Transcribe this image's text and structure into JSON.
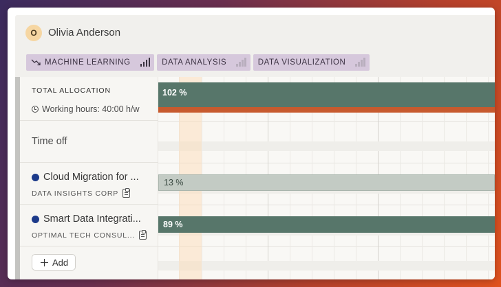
{
  "user": {
    "initial": "O",
    "name": "Olivia Anderson",
    "avatar_color": "#f6d6a2"
  },
  "skills": [
    {
      "label": "MACHINE LEARNING",
      "level": 4,
      "max_level": 4,
      "trend_icon": "trending-down-icon"
    },
    {
      "label": "DATA ANALYSIS",
      "level": 0,
      "max_level": 4
    },
    {
      "label": "DATA VISUALIZATION",
      "level": 0,
      "max_level": 4
    }
  ],
  "allocation": {
    "label": "TOTAL ALLOCATION",
    "working_hours": "Working hours: 40:00 h/w",
    "percent_label": "102 %",
    "percent": 102,
    "bar_color": "#57766a",
    "overallocation_color": "#c75a2e"
  },
  "time_off": {
    "label": "Time off"
  },
  "projects": [
    {
      "name": "Cloud Migration for ...",
      "client": "DATA INSIGHTS CORP",
      "percent_label": "13 %",
      "percent": 13,
      "dot_color": "#1c3a8a"
    },
    {
      "name": "Smart Data Integrati...",
      "client": "OPTIMAL TECH CONSUL...",
      "percent_label": "89 %",
      "percent": 89,
      "dot_color": "#1c3a8a"
    }
  ],
  "add_button": {
    "label": "Add"
  }
}
